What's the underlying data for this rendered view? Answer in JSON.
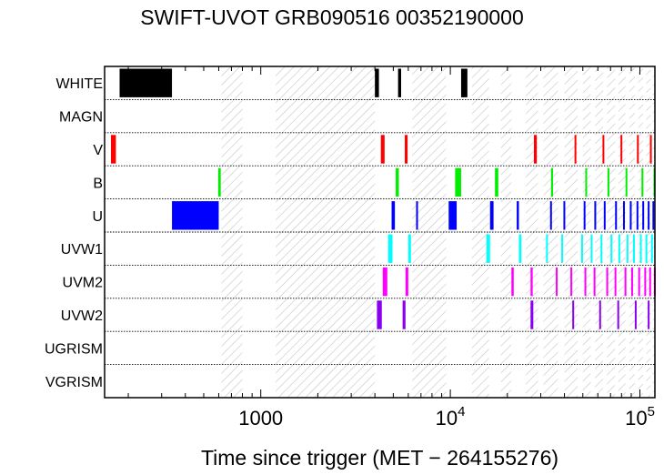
{
  "chart_data": {
    "type": "timeline",
    "title": "SWIFT-UVOT GRB090516 00352190000",
    "xlabel": "Time since trigger (MET − 264155276)",
    "xscale": "log",
    "xlim": [
      150,
      120000
    ],
    "x_ticks": [
      {
        "value": 1000,
        "label": "1000"
      },
      {
        "value": 10000,
        "label": "10",
        "exp": "4"
      },
      {
        "value": 100000,
        "label": "10",
        "exp": "5"
      }
    ],
    "grid": "dotted horizontal separators",
    "filters": [
      "WHITE",
      "MAGN",
      "V",
      "B",
      "U",
      "UVW1",
      "UVM2",
      "UVW2",
      "UGRISM",
      "VGRISM"
    ],
    "colors": {
      "WHITE": "#000000",
      "V": "#ff0000",
      "B": "#00ee00",
      "U": "#0000ff",
      "UVW1": "#00ffff",
      "UVM2": "#ff00ff",
      "UVW2": "#8800ee",
      "hatch": "#c8c8c8"
    },
    "hatched_intervals": [
      [
        620,
        800
      ],
      [
        1200,
        4000
      ],
      [
        6300,
        9500
      ],
      [
        13000,
        16000
      ],
      [
        18500,
        21000
      ],
      [
        25000,
        29000
      ],
      [
        31000,
        37000
      ],
      [
        40000,
        47000
      ],
      [
        50000,
        55000
      ],
      [
        58000,
        64000
      ],
      [
        67000,
        74000
      ],
      [
        77000,
        84000
      ],
      [
        88000,
        94000
      ],
      [
        98000,
        104000
      ],
      [
        108000,
        114000
      ],
      [
        117000,
        120000
      ]
    ],
    "exposures": {
      "WHITE": [
        [
          180,
          340
        ],
        [
          4000,
          4200
        ],
        [
          5300,
          5500
        ],
        [
          11400,
          12300
        ]
      ],
      "MAGN": [],
      "V": [
        [
          162,
          172
        ],
        [
          4300,
          4500
        ],
        [
          5750,
          5950
        ],
        [
          27600,
          28600
        ],
        [
          45200,
          46200
        ],
        [
          63500,
          64500
        ],
        [
          79000,
          79800
        ],
        [
          96500,
          97300
        ],
        [
          113000,
          113800
        ]
      ],
      "B": [
        [
          596,
          615
        ],
        [
          5150,
          5350
        ],
        [
          10600,
          11400
        ],
        [
          17200,
          17900
        ],
        [
          34000,
          34800
        ],
        [
          51500,
          52300
        ],
        [
          67500,
          68300
        ],
        [
          84000,
          84800
        ],
        [
          102000,
          102800
        ],
        [
          118000,
          118800
        ]
      ],
      "U": [
        [
          340,
          600
        ],
        [
          4900,
          5100
        ],
        [
          6600,
          6700
        ],
        [
          9800,
          10800
        ],
        [
          16200,
          16900
        ],
        [
          22400,
          23000
        ],
        [
          33600,
          34300
        ],
        [
          39500,
          40100
        ],
        [
          50500,
          51100
        ],
        [
          57500,
          58100
        ],
        [
          64500,
          65100
        ],
        [
          74000,
          74600
        ],
        [
          81500,
          82100
        ],
        [
          88500,
          89100
        ],
        [
          96000,
          96600
        ],
        [
          103000,
          103600
        ],
        [
          110000,
          110600
        ],
        [
          116500,
          117100
        ]
      ],
      "UVW1": [
        [
          4700,
          4950
        ],
        [
          6000,
          6200
        ],
        [
          15500,
          16200
        ],
        [
          23000,
          23700
        ],
        [
          32000,
          32700
        ],
        [
          38500,
          39200
        ],
        [
          49000,
          49600
        ],
        [
          55000,
          55600
        ],
        [
          62000,
          62600
        ],
        [
          70000,
          70600
        ],
        [
          77000,
          77600
        ],
        [
          85000,
          85600
        ],
        [
          92000,
          92600
        ],
        [
          100000,
          100600
        ],
        [
          107000,
          107600
        ],
        [
          114500,
          115100
        ]
      ],
      "UVM2": [
        [
          4400,
          4650
        ],
        [
          5800,
          6000
        ],
        [
          21000,
          21600
        ],
        [
          26500,
          27200
        ],
        [
          36000,
          36600
        ],
        [
          43000,
          43600
        ],
        [
          51000,
          51600
        ],
        [
          57000,
          57600
        ],
        [
          66500,
          67100
        ],
        [
          73500,
          74100
        ],
        [
          83000,
          83600
        ],
        [
          90000,
          90600
        ],
        [
          98000,
          98600
        ],
        [
          105500,
          106100
        ],
        [
          112000,
          112600
        ],
        [
          118500,
          119100
        ]
      ],
      "UVW2": [
        [
          4100,
          4350
        ],
        [
          5600,
          5800
        ],
        [
          26500,
          27400
        ],
        [
          44000,
          44800
        ],
        [
          61000,
          61800
        ],
        [
          76000,
          76800
        ],
        [
          94000,
          94800
        ],
        [
          110000,
          110600
        ]
      ],
      "UGRISM": [],
      "VGRISM": []
    }
  }
}
